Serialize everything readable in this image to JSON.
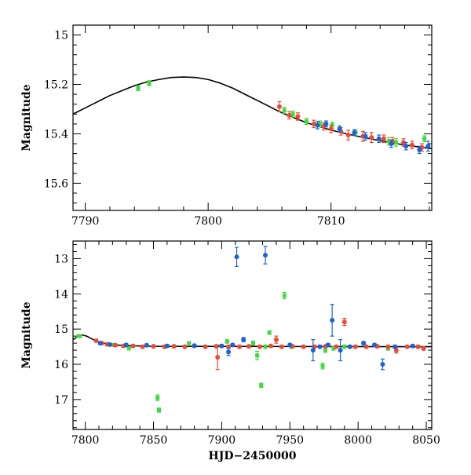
{
  "colors": {
    "green": "#3cdc3c",
    "red": "#ee4a33",
    "blue": "#1a63d6",
    "model": "#000000"
  },
  "chart_data": [
    {
      "type": "scatter",
      "panel": "top",
      "xlabel": "",
      "ylabel": "Magnitude",
      "xlim": [
        7789,
        7818.2
      ],
      "ylim": [
        15.71,
        14.96
      ],
      "y_inverted": true,
      "xticks": [
        7790,
        7800,
        7810
      ],
      "yticks": [
        15,
        15.2,
        15.4,
        15.6
      ],
      "model": {
        "name": "",
        "x": [
          7789,
          7790,
          7791,
          7792,
          7793,
          7794,
          7795,
          7796,
          7797,
          7798,
          7799,
          7800,
          7801,
          7802,
          7803,
          7804,
          7805,
          7806,
          7807,
          7808,
          7809,
          7810,
          7811,
          7812,
          7813,
          7814,
          7815,
          7816,
          7817,
          7818.2
        ],
        "y": [
          15.32,
          15.295,
          15.27,
          15.245,
          15.225,
          15.205,
          15.19,
          15.18,
          15.172,
          15.17,
          15.172,
          15.18,
          15.195,
          15.215,
          15.24,
          15.265,
          15.29,
          15.315,
          15.335,
          15.355,
          15.37,
          15.385,
          15.397,
          15.408,
          15.418,
          15.428,
          15.437,
          15.445,
          15.452,
          15.46
        ]
      },
      "series": [
        {
          "color": "green",
          "x": [
            7794.3,
            7795.2,
            7806.2,
            7806.9,
            7808.0,
            7809.1,
            7810.1,
            7812.0,
            7814.7,
            7815.3,
            7817.6
          ],
          "y": [
            15.215,
            15.195,
            15.305,
            15.32,
            15.35,
            15.36,
            15.365,
            15.395,
            15.43,
            15.435,
            15.42
          ],
          "err": [
            0.01,
            0.01,
            0.012,
            0.012,
            0.012,
            0.012,
            0.012,
            0.012,
            0.015,
            0.015,
            0.012
          ]
        },
        {
          "color": "red",
          "x": [
            7805.8,
            7806.6,
            7807.3,
            7808.6,
            7809.4,
            7810.0,
            7810.8,
            7811.4,
            7812.6,
            7813.3,
            7814.3,
            7815.0,
            7815.9,
            7816.6,
            7817.4
          ],
          "y": [
            15.29,
            15.325,
            15.33,
            15.36,
            15.37,
            15.38,
            15.39,
            15.405,
            15.41,
            15.415,
            15.42,
            15.43,
            15.435,
            15.445,
            15.455
          ],
          "err": [
            0.02,
            0.015,
            0.015,
            0.015,
            0.015,
            0.015,
            0.015,
            0.02,
            0.02,
            0.02,
            0.015,
            0.015,
            0.015,
            0.015,
            0.015
          ]
        },
        {
          "color": "blue",
          "x": [
            7808.9,
            7809.6,
            7810.7,
            7811.9,
            7812.8,
            7813.9,
            7814.9,
            7816.1,
            7817.2,
            7817.9
          ],
          "y": [
            15.365,
            15.36,
            15.38,
            15.395,
            15.41,
            15.42,
            15.44,
            15.45,
            15.465,
            15.45
          ],
          "err": [
            0.015,
            0.012,
            0.012,
            0.012,
            0.015,
            0.015,
            0.015,
            0.015,
            0.015,
            0.02
          ]
        }
      ]
    },
    {
      "type": "scatter",
      "panel": "bottom",
      "xlabel": "HJD−2450000",
      "ylabel": "Magnitude",
      "xlim": [
        7791,
        8054
      ],
      "ylim": [
        17.85,
        12.5
      ],
      "y_inverted": true,
      "xticks": [
        7800,
        7850,
        7900,
        7950,
        8000,
        8050
      ],
      "yticks": [
        13,
        14,
        15,
        16,
        17
      ],
      "model": {
        "name": "",
        "x": [
          7791,
          7795,
          7798,
          7801,
          7804,
          7808,
          7812,
          7818,
          7830,
          7850,
          8054
        ],
        "y": [
          15.3,
          15.2,
          15.17,
          15.2,
          15.26,
          15.34,
          15.39,
          15.44,
          15.47,
          15.49,
          15.5
        ]
      },
      "series": [
        {
          "color": "green",
          "x": [
            7795,
            7796,
            7821,
            7832,
            7853,
            7854,
            7876,
            7904,
            7923,
            7926,
            7929,
            7932,
            7935,
            7946,
            7951,
            7974,
            7976,
            7982,
            7990,
            8022
          ],
          "y": [
            15.2,
            15.2,
            15.45,
            15.55,
            16.95,
            17.3,
            15.4,
            15.35,
            15.4,
            15.75,
            16.6,
            15.5,
            15.1,
            14.05,
            15.5,
            16.05,
            15.6,
            15.55,
            15.5,
            15.55
          ],
          "err": [
            0.03,
            0.03,
            0.04,
            0.04,
            0.08,
            0.06,
            0.04,
            0.05,
            0.06,
            0.12,
            0.06,
            0.05,
            0.05,
            0.09,
            0.05,
            0.08,
            0.06,
            0.05,
            0.05,
            0.05
          ]
        },
        {
          "color": "red",
          "x": [
            7808,
            7812,
            7816,
            7822,
            7828,
            7835,
            7842,
            7850,
            7858,
            7865,
            7873,
            7880,
            7888,
            7896,
            7897,
            7905,
            7913,
            7920,
            7928,
            7936,
            7940,
            7944,
            7952,
            7960,
            7968,
            7976,
            7984,
            7990,
            7998,
            8006,
            8014,
            8022,
            8028,
            8036,
            8044,
            8048
          ],
          "y": [
            15.33,
            15.4,
            15.43,
            15.46,
            15.48,
            15.48,
            15.5,
            15.49,
            15.5,
            15.49,
            15.5,
            15.48,
            15.5,
            15.49,
            15.8,
            15.5,
            15.5,
            15.49,
            15.5,
            15.48,
            15.3,
            15.5,
            15.49,
            15.5,
            15.5,
            15.49,
            15.5,
            14.8,
            15.5,
            15.5,
            15.49,
            15.5,
            15.6,
            15.5,
            15.5,
            15.55
          ],
          "err": [
            0.04,
            0.04,
            0.04,
            0.04,
            0.04,
            0.04,
            0.04,
            0.04,
            0.04,
            0.04,
            0.04,
            0.04,
            0.04,
            0.04,
            0.35,
            0.04,
            0.04,
            0.04,
            0.04,
            0.04,
            0.1,
            0.04,
            0.04,
            0.04,
            0.04,
            0.04,
            0.04,
            0.1,
            0.04,
            0.04,
            0.04,
            0.04,
            0.08,
            0.04,
            0.04,
            0.05
          ]
        },
        {
          "color": "blue",
          "x": [
            7811,
            7818,
            7830,
            7845,
            7860,
            7880,
            7900,
            7905,
            7908,
            7911,
            7916,
            7932,
            7950,
            7967,
            7972,
            7978,
            7981,
            7987,
            7994,
            8004,
            8012,
            8018,
            8027,
            8040
          ],
          "y": [
            15.4,
            15.44,
            15.45,
            15.46,
            15.48,
            15.47,
            15.48,
            15.65,
            15.45,
            12.95,
            15.3,
            12.9,
            15.45,
            15.6,
            15.5,
            15.45,
            14.75,
            15.6,
            15.5,
            15.4,
            15.45,
            16.0,
            15.5,
            15.48
          ],
          "err": [
            0.04,
            0.04,
            0.04,
            0.04,
            0.04,
            0.04,
            0.04,
            0.1,
            0.04,
            0.27,
            0.06,
            0.25,
            0.04,
            0.3,
            0.04,
            0.04,
            0.45,
            0.3,
            0.04,
            0.05,
            0.04,
            0.15,
            0.04,
            0.04
          ]
        }
      ]
    }
  ]
}
